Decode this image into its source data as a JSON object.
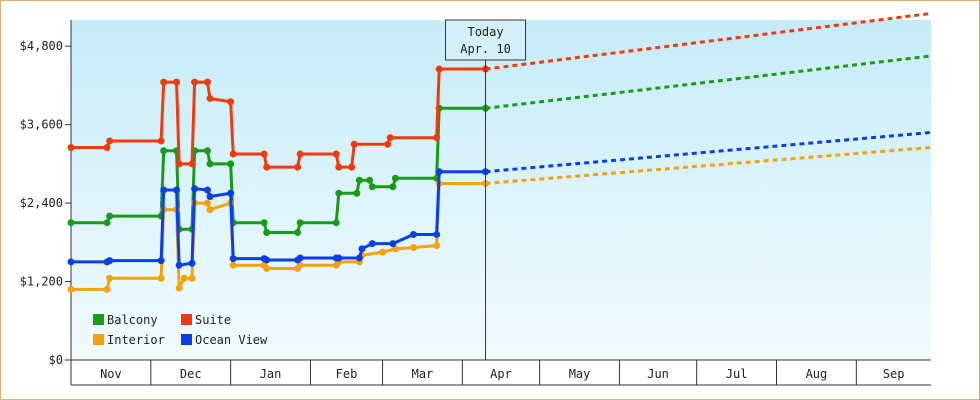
{
  "chart_data": {
    "type": "line",
    "x_unit": "date",
    "x_range": [
      "2024-10-31",
      "2025-09-30"
    ],
    "ylim": [
      0,
      5200
    ],
    "y_ticks": [
      {
        "value": 0,
        "label": "$0"
      },
      {
        "value": 1200,
        "label": "$1,200"
      },
      {
        "value": 2400,
        "label": "$2,400"
      },
      {
        "value": 3600,
        "label": "$3,600"
      },
      {
        "value": 4800,
        "label": "$4,800"
      }
    ],
    "x_ticks": [
      {
        "label": "Nov",
        "start": "2024-10-31",
        "end": "2024-12-01"
      },
      {
        "label": "Dec",
        "start": "2024-12-01",
        "end": "2025-01-01"
      },
      {
        "label": "Jan",
        "start": "2025-01-01",
        "end": "2025-02-01"
      },
      {
        "label": "Feb",
        "start": "2025-02-01",
        "end": "2025-03-01"
      },
      {
        "label": "Mar",
        "start": "2025-03-01",
        "end": "2025-04-01"
      },
      {
        "label": "Apr",
        "start": "2025-04-01",
        "end": "2025-05-01"
      },
      {
        "label": "May",
        "start": "2025-05-01",
        "end": "2025-06-01"
      },
      {
        "label": "Jun",
        "start": "2025-06-01",
        "end": "2025-07-01"
      },
      {
        "label": "Jul",
        "start": "2025-07-01",
        "end": "2025-08-01"
      },
      {
        "label": "Aug",
        "start": "2025-08-01",
        "end": "2025-09-01"
      },
      {
        "label": "Sep",
        "start": "2025-09-01",
        "end": "2025-09-30"
      }
    ],
    "today": {
      "date": "2025-04-10",
      "label_line1": "Today",
      "label_line2": "Apr. 10"
    },
    "legend_placement": "bottom-left",
    "series": [
      {
        "name": "Balcony",
        "color": "#1a9a1a",
        "history": [
          [
            "2024-10-31",
            2100
          ],
          [
            "2024-11-14",
            2100
          ],
          [
            "2024-11-15",
            2200
          ],
          [
            "2024-12-05",
            2200
          ],
          [
            "2024-12-06",
            3200
          ],
          [
            "2024-12-11",
            3200
          ],
          [
            "2024-12-12",
            2000
          ],
          [
            "2024-12-17",
            2000
          ],
          [
            "2024-12-18",
            3200
          ],
          [
            "2024-12-23",
            3200
          ],
          [
            "2024-12-24",
            3000
          ],
          [
            "2025-01-01",
            3000
          ],
          [
            "2025-01-02",
            2100
          ],
          [
            "2025-01-14",
            2100
          ],
          [
            "2025-01-15",
            1950
          ],
          [
            "2025-01-27",
            1950
          ],
          [
            "2025-01-28",
            2100
          ],
          [
            "2025-02-11",
            2100
          ],
          [
            "2025-02-12",
            2550
          ],
          [
            "2025-02-19",
            2550
          ],
          [
            "2025-02-20",
            2750
          ],
          [
            "2025-02-24",
            2750
          ],
          [
            "2025-02-25",
            2650
          ],
          [
            "2025-03-05",
            2650
          ],
          [
            "2025-03-06",
            2780
          ],
          [
            "2025-03-22",
            2780
          ],
          [
            "2025-03-23",
            3850
          ],
          [
            "2025-04-10",
            3850
          ]
        ],
        "forecast": [
          [
            "2025-04-10",
            3850
          ],
          [
            "2025-09-30",
            4650
          ]
        ]
      },
      {
        "name": "Suite",
        "color": "#f23a0e",
        "history": [
          [
            "2024-10-31",
            3250
          ],
          [
            "2024-11-14",
            3250
          ],
          [
            "2024-11-15",
            3350
          ],
          [
            "2024-12-05",
            3350
          ],
          [
            "2024-12-06",
            4250
          ],
          [
            "2024-12-11",
            4250
          ],
          [
            "2024-12-12",
            3000
          ],
          [
            "2024-12-17",
            3000
          ],
          [
            "2024-12-18",
            4250
          ],
          [
            "2024-12-23",
            4250
          ],
          [
            "2024-12-24",
            4000
          ],
          [
            "2025-01-01",
            3950
          ],
          [
            "2025-01-02",
            3150
          ],
          [
            "2025-01-14",
            3150
          ],
          [
            "2025-01-15",
            2950
          ],
          [
            "2025-01-27",
            2950
          ],
          [
            "2025-01-28",
            3150
          ],
          [
            "2025-02-11",
            3150
          ],
          [
            "2025-02-12",
            2950
          ],
          [
            "2025-02-17",
            2950
          ],
          [
            "2025-02-18",
            3300
          ],
          [
            "2025-03-03",
            3300
          ],
          [
            "2025-03-04",
            3400
          ],
          [
            "2025-03-22",
            3400
          ],
          [
            "2025-03-23",
            4450
          ],
          [
            "2025-04-10",
            4450
          ]
        ],
        "forecast": [
          [
            "2025-04-10",
            4450
          ],
          [
            "2025-09-30",
            5300
          ]
        ]
      },
      {
        "name": "Interior",
        "color": "#f5a20e",
        "history": [
          [
            "2024-10-31",
            1080
          ],
          [
            "2024-11-14",
            1080
          ],
          [
            "2024-11-15",
            1250
          ],
          [
            "2024-12-05",
            1250
          ],
          [
            "2024-12-06",
            2300
          ],
          [
            "2024-12-11",
            2300
          ],
          [
            "2024-12-12",
            1100
          ],
          [
            "2024-12-14",
            1250
          ],
          [
            "2024-12-17",
            1250
          ],
          [
            "2024-12-18",
            2400
          ],
          [
            "2024-12-23",
            2400
          ],
          [
            "2024-12-24",
            2300
          ],
          [
            "2025-01-01",
            2400
          ],
          [
            "2025-01-02",
            1450
          ],
          [
            "2025-01-14",
            1450
          ],
          [
            "2025-01-15",
            1400
          ],
          [
            "2025-01-27",
            1400
          ],
          [
            "2025-01-28",
            1450
          ],
          [
            "2025-02-11",
            1450
          ],
          [
            "2025-02-12",
            1500
          ],
          [
            "2025-02-20",
            1500
          ],
          [
            "2025-02-21",
            1600
          ],
          [
            "2025-03-01",
            1650
          ],
          [
            "2025-03-06",
            1700
          ],
          [
            "2025-03-13",
            1720
          ],
          [
            "2025-03-22",
            1750
          ],
          [
            "2025-03-23",
            2700
          ],
          [
            "2025-04-10",
            2700
          ]
        ],
        "forecast": [
          [
            "2025-04-10",
            2700
          ],
          [
            "2025-09-30",
            3250
          ]
        ]
      },
      {
        "name": "Ocean View",
        "color": "#0c3ee8",
        "history": [
          [
            "2024-10-31",
            1500
          ],
          [
            "2024-11-14",
            1500
          ],
          [
            "2024-11-15",
            1520
          ],
          [
            "2024-12-05",
            1520
          ],
          [
            "2024-12-06",
            2600
          ],
          [
            "2024-12-11",
            2600
          ],
          [
            "2024-12-12",
            1450
          ],
          [
            "2024-12-17",
            1480
          ],
          [
            "2024-12-18",
            2620
          ],
          [
            "2024-12-23",
            2600
          ],
          [
            "2024-12-24",
            2500
          ],
          [
            "2025-01-01",
            2550
          ],
          [
            "2025-01-02",
            1550
          ],
          [
            "2025-01-14",
            1550
          ],
          [
            "2025-01-15",
            1530
          ],
          [
            "2025-01-27",
            1530
          ],
          [
            "2025-01-28",
            1560
          ],
          [
            "2025-02-11",
            1560
          ],
          [
            "2025-02-12",
            1560
          ],
          [
            "2025-02-20",
            1560
          ],
          [
            "2025-02-21",
            1700
          ],
          [
            "2025-02-25",
            1780
          ],
          [
            "2025-03-05",
            1780
          ],
          [
            "2025-03-13",
            1920
          ],
          [
            "2025-03-22",
            1920
          ],
          [
            "2025-03-23",
            2880
          ],
          [
            "2025-04-10",
            2880
          ]
        ],
        "forecast": [
          [
            "2025-04-10",
            2880
          ],
          [
            "2025-09-30",
            3480
          ]
        ]
      }
    ],
    "legend_rows": [
      [
        "Balcony",
        "Suite"
      ],
      [
        "Interior",
        "Ocean View"
      ]
    ]
  }
}
